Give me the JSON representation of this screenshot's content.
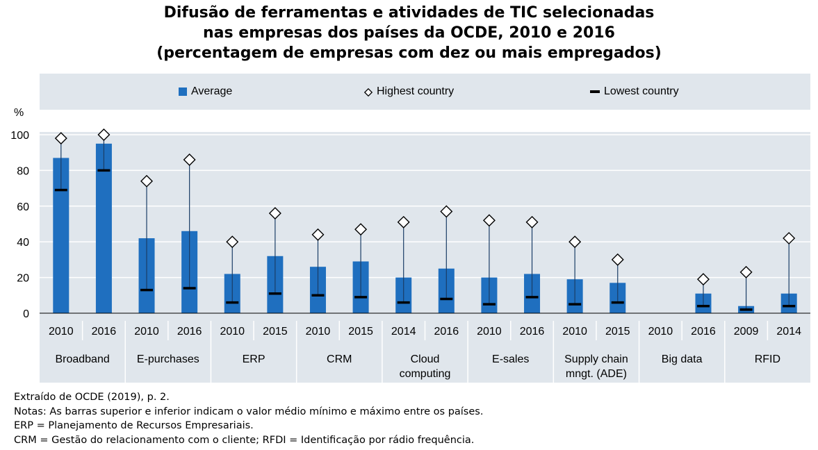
{
  "title": {
    "line1": "Difusão de ferramentas e atividades de TIC selecionadas",
    "line2": "nas empresas dos países da OCDE, 2010 e 2016",
    "line3": "(percentagem de empresas com dez ou mais empregados)"
  },
  "legend": {
    "average": "Average",
    "highest": "Highest country",
    "lowest": "Lowest country"
  },
  "colors": {
    "bar": "#1f6fbf",
    "plot_bg": "#e0e6ec",
    "grid": "#ffffff",
    "marker": "#000000"
  },
  "notes": {
    "source": "Extraído de OCDE (2019), p. 2.",
    "line1": "Notas: As barras superior e inferior indicam o valor médio mínimo e máximo entre os países.",
    "line2": "ERP = Planejamento de Recursos Empresariais.",
    "line3": "CRM = Gestão do relacionamento com o cliente; RFDI = Identificação por rádio frequência."
  },
  "chart_data": {
    "type": "bar",
    "ylabel": "%",
    "ylim": [
      0,
      100
    ],
    "yticks": [
      0,
      20,
      40,
      60,
      80,
      100
    ],
    "grid": true,
    "legend_position": "top",
    "groups": [
      {
        "label": [
          "Broadband"
        ],
        "bars": [
          {
            "year": "2010",
            "average": 87,
            "highest": 98,
            "lowest": 69
          },
          {
            "year": "2016",
            "average": 95,
            "highest": 100,
            "lowest": 80
          }
        ]
      },
      {
        "label": [
          "E-purchases"
        ],
        "bars": [
          {
            "year": "2010",
            "average": 42,
            "highest": 74,
            "lowest": 13
          },
          {
            "year": "2016",
            "average": 46,
            "highest": 86,
            "lowest": 14
          }
        ]
      },
      {
        "label": [
          "ERP"
        ],
        "bars": [
          {
            "year": "2010",
            "average": 22,
            "highest": 40,
            "lowest": 6
          },
          {
            "year": "2015",
            "average": 32,
            "highest": 56,
            "lowest": 11
          }
        ]
      },
      {
        "label": [
          "CRM"
        ],
        "bars": [
          {
            "year": "2010",
            "average": 26,
            "highest": 44,
            "lowest": 10
          },
          {
            "year": "2015",
            "average": 29,
            "highest": 47,
            "lowest": 9
          }
        ]
      },
      {
        "label": [
          "Cloud",
          "computing"
        ],
        "bars": [
          {
            "year": "2014",
            "average": 20,
            "highest": 51,
            "lowest": 6
          },
          {
            "year": "2016",
            "average": 25,
            "highest": 57,
            "lowest": 8
          }
        ]
      },
      {
        "label": [
          "E-sales"
        ],
        "bars": [
          {
            "year": "2010",
            "average": 20,
            "highest": 52,
            "lowest": 5
          },
          {
            "year": "2016",
            "average": 22,
            "highest": 51,
            "lowest": 9
          }
        ]
      },
      {
        "label": [
          "Supply chain",
          "mngt. (ADE)"
        ],
        "bars": [
          {
            "year": "2010",
            "average": 19,
            "highest": 40,
            "lowest": 5
          },
          {
            "year": "2015",
            "average": 17,
            "highest": 30,
            "lowest": 6
          }
        ]
      },
      {
        "label": [
          "Big data"
        ],
        "bars": [
          {
            "year": "2010",
            "average": null,
            "highest": null,
            "lowest": null
          },
          {
            "year": "2016",
            "average": 11,
            "highest": 19,
            "lowest": 4
          }
        ]
      },
      {
        "label": [
          "RFID"
        ],
        "bars": [
          {
            "year": "2009",
            "average": 4,
            "highest": 23,
            "lowest": 2
          },
          {
            "year": "2014",
            "average": 11,
            "highest": 42,
            "lowest": 4
          }
        ]
      }
    ]
  }
}
